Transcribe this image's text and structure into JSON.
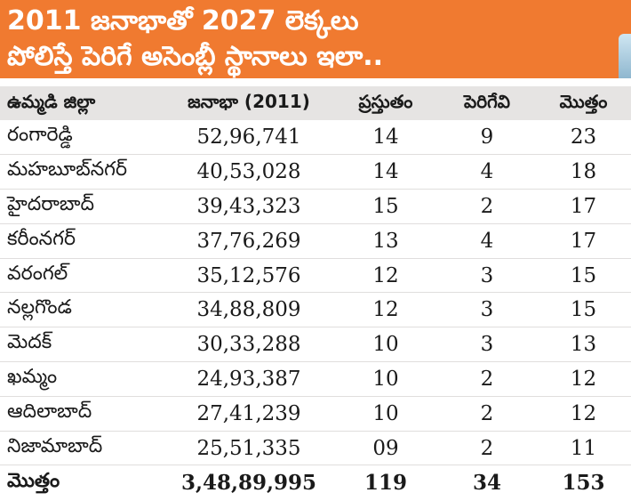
{
  "title_line1": "2011 జనాభాతో 2027 లెక్కలు",
  "title_line2": "పోలిస్తే పెరిగే అసెంబ్లీ స్థానాలు ఇలా..",
  "headers": {
    "district": "ఉమ్మడి జిల్లా",
    "population": "జనాభా (2011)",
    "current": "ప్రస్తుతం",
    "increase": "పెరిగేవి",
    "total": "మొత్తం"
  },
  "rows": [
    {
      "district": "రంగారెడ్డి",
      "population": "52,96,741",
      "current": "14",
      "increase": "9",
      "total": "23"
    },
    {
      "district": "మహబూబ్‌నగర్",
      "population": "40,53,028",
      "current": "14",
      "increase": "4",
      "total": "18"
    },
    {
      "district": "హైదరాబాద్",
      "population": "39,43,323",
      "current": "15",
      "increase": "2",
      "total": "17"
    },
    {
      "district": "కరీంనగర్",
      "population": "37,76,269",
      "current": "13",
      "increase": "4",
      "total": "17"
    },
    {
      "district": "వరంగల్",
      "population": "35,12,576",
      "current": "12",
      "increase": "3",
      "total": "15"
    },
    {
      "district": "నల్లగొండ",
      "population": "34,88,809",
      "current": "12",
      "increase": "3",
      "total": "15"
    },
    {
      "district": "మెదక్",
      "population": "30,33,288",
      "current": "10",
      "increase": "3",
      "total": "13"
    },
    {
      "district": "ఖమ్మం",
      "population": "24,93,387",
      "current": "10",
      "increase": "2",
      "total": "12"
    },
    {
      "district": "ఆదిలాబాద్",
      "population": "27,41,239",
      "current": "10",
      "increase": "2",
      "total": "12"
    },
    {
      "district": "నిజామాబాద్",
      "population": "25,51,335",
      "current": "09",
      "increase": "2",
      "total": "11"
    }
  ],
  "total_row": {
    "district": "మొత్తం",
    "population": "3,48,89,995",
    "current": "119",
    "increase": "34",
    "total": "153"
  }
}
